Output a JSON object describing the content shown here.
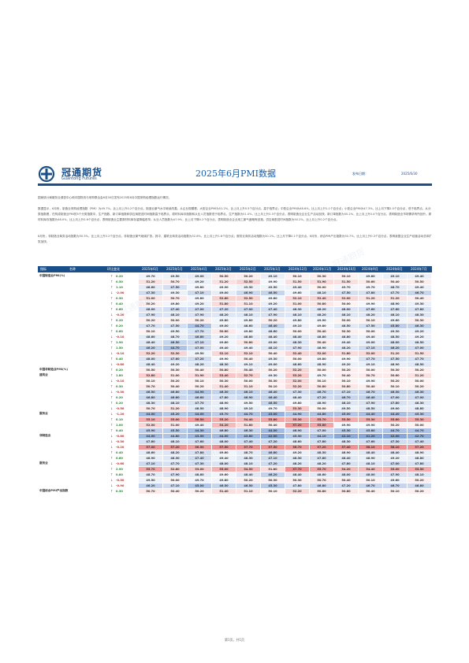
{
  "brand": {
    "cn": "冠通期货",
    "en": "Guantong Futures"
  },
  "title": "2025年6月PMI数据",
  "date_label": "发布日期：",
  "date_value": "2025/6/30",
  "paragraphs": [
    "国家统计局服务业调查中心和中国物流与采购联合会6月30日发布2025年6月中国采购经理指数运行情况。",
    "数据显示，6月份，制造业采购经理指数（PMI）为49.7%，比上月上升0.2个百分点，制造业景气水平继续改善。从企业规模看，大型企业PMI为51.2%，比上月上升0.5个百分点，高于临界点；中型企业PMI为48.6%，比上月上升1.1个百分点；小型企业PMI为47.3%，比上月下降2.0个百分点，低于临界点。从分类指数看，在构成制造业PMI的5个分类指数中，生产指数、新订单指数和供应商配送时间指数高于临界点，原材料库存指数和从业人员指数低于临界点。生产指数为51.0%，比上月上升0.3个百分点，表明制造业企业生产活动加快。新订单指数为50.2%，比上月上升0.4个百分点，表明制造业市场需求有所回升。原材料库存指数为48.0%，比上月上升0.6个百分点，表明制造业主要原材料库存量降幅收窄。从业人员指数为47.9%，比上月下降0.2个百分点，表明制造业企业用工景气度略有回落。供应商配送时间指数为50.2%，比上月上升0.2个百分点。",
    "6月份，非制造业商务活动指数为50.5%，比上月上升0.2个百分点，非制造业景气继续扩张。其中，建筑业商务活动指数为52.8%，比上月上升1.8个百分点；服务业商务活动指数为50.1%，比上月下降0.1个百分点。6月份，综合PMI产出指数为50.7%，比上月上升0.3个百分点，表明我国企业生产经营活动总体扩张加快。"
  ],
  "table": {
    "headers": [
      "指标",
      "名称",
      "环比变化",
      "2025年6月",
      "2025年5月",
      "2025年4月",
      "2025年3月",
      "2025年2月",
      "2025年1月",
      "2024年12月",
      "2024年11月",
      "2024年10月",
      "2024年9月",
      "2024年8月",
      "2024年7月"
    ],
    "rows": [
      {
        "label": "中国制造业PMI(%)",
        "dir": "up",
        "chg": "0.20",
        "vals": [
          "49.70",
          "49.50",
          "49.00",
          "50.50",
          "50.20",
          "49.10",
          "50.10",
          "50.30",
          "50.10",
          "49.80",
          "49.10",
          "49.40"
        ]
      },
      {
        "label": "",
        "dir": "up",
        "chg": "0.50",
        "vals": [
          "51.20",
          "50.70",
          "49.20",
          "51.20",
          "52.50",
          "49.90",
          "51.50",
          "51.90",
          "51.50",
          "50.60",
          "50.40",
          "50.50"
        ]
      },
      {
        "label": "",
        "dir": "up",
        "chg": "1.10",
        "vals": [
          "48.60",
          "47.50",
          "49.80",
          "49.90",
          "49.30",
          "49.50",
          "49.40",
          "50.00",
          "49.70",
          "49.70",
          "48.70",
          "49.40"
        ]
      },
      {
        "label": "",
        "dir": "down",
        "chg": "-2.00",
        "vals": [
          "47.30",
          "49.30",
          "47.10",
          "49.00",
          "46.90",
          "46.50",
          "49.60",
          "48.10",
          "47.50",
          "47.80",
          "47.70",
          "46.70"
        ]
      },
      {
        "label": "",
        "dir": "up",
        "chg": "0.30",
        "vals": [
          "51.00",
          "50.70",
          "49.80",
          "52.60",
          "52.50",
          "49.80",
          "52.10",
          "52.40",
          "52.00",
          "51.20",
          "51.20",
          "50.40"
        ]
      },
      {
        "label": "",
        "dir": "up",
        "chg": "0.40",
        "vals": [
          "50.20",
          "49.80",
          "49.20",
          "51.80",
          "51.10",
          "49.20",
          "51.00",
          "50.80",
          "50.00",
          "49.90",
          "48.90",
          "49.30"
        ]
      },
      {
        "label": "",
        "dir": "up",
        "chg": "0.60",
        "vals": [
          "48.00",
          "47.40",
          "47.00",
          "47.20",
          "47.00",
          "47.40",
          "48.30",
          "48.20",
          "48.00",
          "47.60",
          "47.60",
          "47.80"
        ]
      },
      {
        "label": "",
        "dir": "down",
        "chg": "-0.20",
        "vals": [
          "47.90",
          "48.10",
          "47.90",
          "48.20",
          "48.10",
          "47.90",
          "48.10",
          "48.20",
          "48.10",
          "48.20",
          "48.10",
          "48.30"
        ]
      },
      {
        "label": "",
        "dir": "up",
        "chg": "0.20",
        "vals": [
          "50.20",
          "50.00",
          "50.20",
          "49.80",
          "49.80",
          "50.20",
          "49.80",
          "49.90",
          "50.00",
          "50.10",
          "49.60",
          "50.30"
        ]
      },
      {
        "label": "",
        "dir": "up",
        "chg": "0.20",
        "vals": [
          "47.70",
          "47.50",
          "44.70",
          "49.00",
          "48.60",
          "46.40",
          "49.10",
          "49.80",
          "48.50",
          "47.50",
          "45.80",
          "46.30"
        ]
      },
      {
        "label": "",
        "dir": "up",
        "chg": "0.60",
        "vals": [
          "50.10",
          "49.50",
          "47.70",
          "50.60",
          "49.80",
          "48.60",
          "50.00",
          "50.40",
          "50.30",
          "50.00",
          "49.30",
          "49.20"
        ]
      },
      {
        "label": "",
        "dir": "down",
        "chg": "-0.10",
        "vals": [
          "48.60",
          "48.70",
          "46.80",
          "49.20",
          "48.80",
          "48.40",
          "48.40",
          "48.80",
          "48.80",
          "49.40",
          "48.50",
          "49.20"
        ]
      },
      {
        "label": "",
        "dir": "up",
        "chg": "1.90",
        "vals": [
          "48.40",
          "46.50",
          "47.10",
          "49.80",
          "50.80",
          "49.00",
          "48.30",
          "50.40",
          "49.40",
          "49.00",
          "48.00",
          "48.50"
        ]
      },
      {
        "label": "",
        "dir": "up",
        "chg": "1.50",
        "vals": [
          "46.20",
          "44.70",
          "47.00",
          "49.40",
          "49.40",
          "48.10",
          "47.90",
          "48.90",
          "48.20",
          "47.10",
          "46.20",
          "47.00"
        ]
      },
      {
        "label": "",
        "dir": "down",
        "chg": "-0.10",
        "vals": [
          "52.20",
          "52.30",
          "49.50",
          "52.10",
          "52.10",
          "50.40",
          "52.40",
          "52.00",
          "51.80",
          "52.00",
          "51.20",
          "51.50"
        ]
      },
      {
        "label": "",
        "dir": "up",
        "chg": "0.40",
        "vals": [
          "48.00",
          "47.60",
          "47.20",
          "49.90",
          "50.40",
          "49.30",
          "50.00",
          "49.80",
          "49.90",
          "47.70",
          "47.50",
          "47.70"
        ]
      },
      {
        "label": "",
        "dir": "down",
        "chg": "-0.80",
        "vals": [
          "48.40",
          "49.20",
          "48.20",
          "48.30",
          "49.10",
          "49.00",
          "48.60",
          "48.90",
          "49.20",
          "49.10",
          "48.90",
          "48.50"
        ]
      },
      {
        "label": "中国非制造业PMI(%)",
        "dir": "up",
        "chg": "0.20",
        "vals": [
          "50.50",
          "50.30",
          "50.40",
          "50.80",
          "50.40",
          "50.20",
          "52.20",
          "50.00",
          "50.20",
          "50.00",
          "50.30",
          "50.20"
        ]
      },
      {
        "label": "建筑业",
        "dir": "up",
        "chg": "1.80",
        "vals": [
          "52.80",
          "51.00",
          "51.90",
          "53.40",
          "52.70",
          "49.30",
          "53.20",
          "49.70",
          "50.40",
          "50.70",
          "50.60",
          "51.20"
        ]
      },
      {
        "label": "",
        "dir": "down",
        "chg": "-0.10",
        "vals": [
          "50.10",
          "50.20",
          "50.10",
          "50.30",
          "50.00",
          "50.30",
          "52.00",
          "50.10",
          "50.10",
          "49.90",
          "50.20",
          "50.00"
        ]
      },
      {
        "label": "",
        "dir": "up",
        "chg": "0.30",
        "vals": [
          "50.70",
          "50.40",
          "50.20",
          "51.40",
          "51.10",
          "50.10",
          "52.20",
          "50.80",
          "50.80",
          "50.40",
          "50.10",
          "50.20"
        ]
      },
      {
        "label": "",
        "dir": "down",
        "chg": "-0.30",
        "vals": [
          "46.50",
          "46.80",
          "44.90",
          "46.30",
          "46.10",
          "46.40",
          "47.30",
          "46.70",
          "47.10",
          "46.70",
          "46.30",
          "46.30"
        ]
      },
      {
        "label": "",
        "dir": "up",
        "chg": "0.20",
        "vals": [
          "46.80",
          "46.60",
          "46.60",
          "47.80",
          "46.90",
          "46.40",
          "48.40",
          "47.20",
          "46.70",
          "46.40",
          "47.00",
          "47.00"
        ]
      },
      {
        "label": "",
        "dir": "up",
        "chg": "0.20",
        "vals": [
          "48.30",
          "48.10",
          "47.70",
          "48.90",
          "49.50",
          "46.50",
          "49.80",
          "48.90",
          "48.10",
          "47.90",
          "47.80",
          "48.30"
        ]
      },
      {
        "label": "",
        "dir": "down",
        "chg": "-0.50",
        "vals": [
          "50.70",
          "51.20",
          "48.50",
          "48.90",
          "49.10",
          "49.70",
          "53.30",
          "50.00",
          "49.50",
          "48.50",
          "49.00",
          "48.80"
        ]
      },
      {
        "label": "服务业",
        "dir": "down",
        "chg": "-1.20",
        "vals": [
          "44.00",
          "45.20",
          "44.00",
          "45.70",
          "44.70",
          "43.00",
          "44.90",
          "44.80",
          "45.00",
          "44.40",
          "44.40",
          "45.30"
        ]
      },
      {
        "label": "",
        "dir": "up",
        "chg": "0.10",
        "vals": [
          "55.10",
          "55.00",
          "56.50",
          "55.20",
          "54.40",
          "55.80",
          "55.30",
          "55.70",
          "55.50",
          "55.30",
          "55.60",
          "55.30"
        ]
      },
      {
        "label": "",
        "dir": "up",
        "chg": "1.00",
        "vals": [
          "52.00",
          "51.00",
          "49.40",
          "54.20",
          "51.80",
          "50.40",
          "57.20",
          "55.80",
          "49.90",
          "49.90",
          "50.20",
          "50.00"
        ]
      },
      {
        "label": "",
        "dir": "up",
        "chg": "0.40",
        "vals": [
          "45.90",
          "45.50",
          "44.30",
          "46.80",
          "46.30",
          "44.00",
          "46.90",
          "47.00",
          "45.30",
          "45.80",
          "44.70",
          "44.70"
        ]
      },
      {
        "label": "非制造业",
        "dir": "down",
        "chg": "-0.80",
        "vals": [
          "44.00",
          "44.80",
          "43.50",
          "44.00",
          "43.80",
          "42.00",
          "45.30",
          "44.10",
          "42.10",
          "41.20",
          "42.00",
          "42.70"
        ]
      },
      {
        "label": "",
        "dir": "down",
        "chg": "-0.30",
        "vals": [
          "47.80",
          "48.10",
          "47.60",
          "48.00",
          "47.40",
          "47.20",
          "48.60",
          "47.80",
          "48.30",
          "47.60",
          "47.30",
          "47.40"
        ]
      },
      {
        "label": "",
        "dir": "down",
        "chg": "-0.20",
        "vals": [
          "57.00",
          "57.20",
          "56.50",
          "57.50",
          "57.70",
          "57.50",
          "56.70",
          "57.20",
          "57.40",
          "58.10",
          "58.10",
          "57.20"
        ]
      },
      {
        "label": "",
        "dir": "up",
        "chg": "0.40",
        "vals": [
          "48.60",
          "48.20",
          "47.80",
          "49.60",
          "48.70",
          "46.80",
          "49.20",
          "48.30",
          "48.90",
          "48.40",
          "48.40",
          "48.90"
        ]
      },
      {
        "label": "",
        "dir": "up",
        "chg": "0.60",
        "vals": [
          "48.90",
          "48.30",
          "47.40",
          "49.40",
          "48.30",
          "47.10",
          "48.30",
          "47.80",
          "48.40",
          "48.90",
          "49.20",
          "48.80"
        ]
      },
      {
        "label": "服务业",
        "dir": "down",
        "chg": "-0.60",
        "vals": [
          "47.10",
          "47.70",
          "47.30",
          "48.00",
          "48.10",
          "47.20",
          "48.20",
          "48.20",
          "47.80",
          "48.10",
          "47.00",
          "47.80"
        ]
      },
      {
        "label": "",
        "dir": "up",
        "chg": "2.90",
        "vals": [
          "55.70",
          "52.80",
          "53.00",
          "55.00",
          "54.50",
          "51.80",
          "57.70",
          "55.70",
          "54.20",
          "54.40",
          "55.00",
          "55.50"
        ]
      },
      {
        "label": "",
        "dir": "up",
        "chg": "0.80",
        "vals": [
          "48.70",
          "47.90",
          "48.60",
          "49.60",
          "48.40",
          "46.20",
          "48.40",
          "48.60",
          "48.00",
          "48.00",
          "47.90",
          "48.10"
        ]
      },
      {
        "label": "",
        "dir": "down",
        "chg": "-0.50",
        "vals": [
          "49.50",
          "50.00",
          "49.70",
          "49.80",
          "50.20",
          "50.30",
          "50.30",
          "50.70",
          "50.40",
          "50.10",
          "49.60",
          "50.20"
        ]
      },
      {
        "label": "",
        "dir": "down",
        "chg": "-0.90",
        "vals": [
          "46.20",
          "47.10",
          "45.00",
          "46.50",
          "46.50",
          "45.30",
          "47.80",
          "46.80",
          "47.20",
          "46.70",
          "46.70",
          "46.80"
        ]
      },
      {
        "label": "中国综合PMI产出指数",
        "dir": "up",
        "chg": "0.30",
        "vals": [
          "50.70",
          "50.40",
          "50.20",
          "51.40",
          "51.10",
          "50.10",
          "52.20",
          "50.80",
          "50.80",
          "50.40",
          "50.10",
          "50.20"
        ]
      }
    ]
  },
  "footer": "第1页，共1页",
  "colors": {
    "brand": "#1b4f8a",
    "up": "#2e7d32",
    "down": "#c62828",
    "high": "#f4a6a6",
    "low": "#5b8ccf"
  }
}
